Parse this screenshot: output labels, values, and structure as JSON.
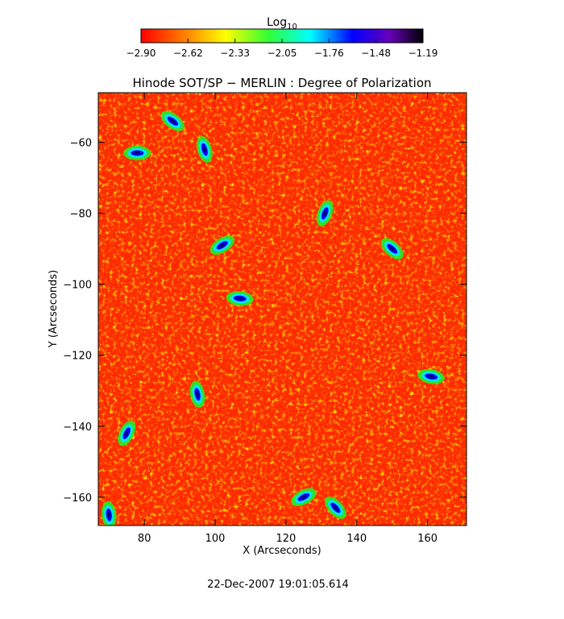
{
  "chart_data": {
    "type": "heatmap",
    "title": "Hinode SOT/SP − MERLIN : Degree of Polarization",
    "xlabel": "X (Arcseconds)",
    "ylabel": "Y (Arcseconds)",
    "xlim": [
      67,
      171
    ],
    "ylim": [
      -168,
      -46
    ],
    "x_ticks": [
      80,
      100,
      120,
      140,
      160
    ],
    "y_ticks": [
      -60,
      -80,
      -100,
      -120,
      -140,
      -160
    ],
    "colorbar": {
      "label_base": "Log",
      "label_sub": "10",
      "ticks": [
        "−2.90",
        "−2.62",
        "−2.33",
        "−2.05",
        "−1.76",
        "−1.48",
        "−1.19"
      ],
      "range": [
        -2.9,
        -1.19
      ],
      "colormap": "rainbow (red → yellow → green → cyan → blue → violet → black)"
    },
    "timestamp": "22-Dec-2007 19:01:05.614",
    "high_polarization_features": [
      {
        "x": 78,
        "y": -63
      },
      {
        "x": 88,
        "y": -54
      },
      {
        "x": 97,
        "y": -62
      },
      {
        "x": 131,
        "y": -80
      },
      {
        "x": 102,
        "y": -89
      },
      {
        "x": 107,
        "y": -104
      },
      {
        "x": 150,
        "y": -90
      },
      {
        "x": 95,
        "y": -131
      },
      {
        "x": 75,
        "y": -142
      },
      {
        "x": 125,
        "y": -160
      },
      {
        "x": 161,
        "y": -126
      },
      {
        "x": 134,
        "y": -163
      },
      {
        "x": 70,
        "y": -165
      }
    ]
  }
}
